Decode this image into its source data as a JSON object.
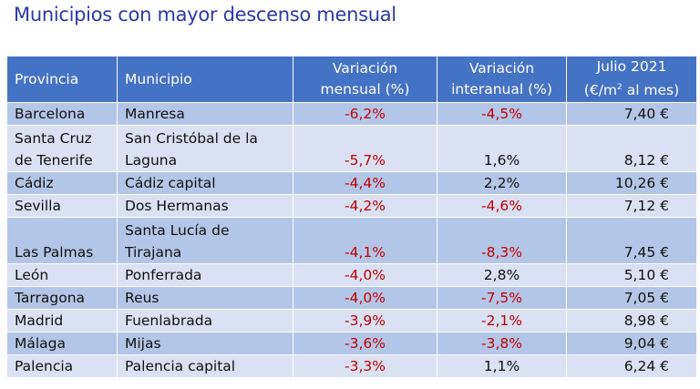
{
  "title": "Municipios con mayor descenso mensual",
  "header": {
    "provincia": "Provincia",
    "municipio": "Municipio",
    "variacion_mensual_1": "Variación",
    "variacion_mensual_2": "mensual (%)",
    "variacion_interanual_1": "Variación",
    "variacion_interanual_2": "interanual (%)",
    "julio_1": "Julio 2021",
    "julio_2a": "(€/m",
    "julio_sup": "2",
    "julio_2b": " al mes)"
  },
  "rows": [
    {
      "provincia": [
        "Barcelona"
      ],
      "municipio": [
        "Manresa"
      ],
      "mensual": "-6,2%",
      "interanual": "-4,5%",
      "precio": "7,40 €"
    },
    {
      "provincia": [
        "Santa Cruz",
        "de Tenerife"
      ],
      "municipio": [
        "San Cristóbal de la",
        "Laguna"
      ],
      "mensual": "-5,7%",
      "interanual": "1,6%",
      "precio": "8,12 €"
    },
    {
      "provincia": [
        "Cádiz"
      ],
      "municipio": [
        "Cádiz capital"
      ],
      "mensual": "-4,4%",
      "interanual": "2,2%",
      "precio": "10,26 €"
    },
    {
      "provincia": [
        "Sevilla"
      ],
      "municipio": [
        "Dos Hermanas"
      ],
      "mensual": "-4,2%",
      "interanual": "-4,6%",
      "precio": "7,12 €"
    },
    {
      "provincia": [
        "Las Palmas"
      ],
      "municipio": [
        "Santa Lucía de",
        "Tirajana"
      ],
      "mensual": "-4,1%",
      "interanual": "-8,3%",
      "precio": "7,45 €"
    },
    {
      "provincia": [
        "León"
      ],
      "municipio": [
        "Ponferrada"
      ],
      "mensual": "-4,0%",
      "interanual": "2,8%",
      "precio": "5,10 €"
    },
    {
      "provincia": [
        "Tarragona"
      ],
      "municipio": [
        "Reus"
      ],
      "mensual": "-4,0%",
      "interanual": "-7,5%",
      "precio": "7,05 €"
    },
    {
      "provincia": [
        "Madrid"
      ],
      "municipio": [
        "Fuenlabrada"
      ],
      "mensual": "-3,9%",
      "interanual": "-2,1%",
      "precio": "8,98 €"
    },
    {
      "provincia": [
        "Málaga"
      ],
      "municipio": [
        "Mijas"
      ],
      "mensual": "-3,6%",
      "interanual": "-3,8%",
      "precio": "9,04 €"
    },
    {
      "provincia": [
        "Palencia"
      ],
      "municipio": [
        "Palencia capital"
      ],
      "mensual": "-3,3%",
      "interanual": "1,1%",
      "precio": "6,24 €"
    }
  ],
  "colors": {
    "header_bg": "#4472c4",
    "row_odd": "#b4c6e7",
    "row_even": "#d9e1f2",
    "negative": "#c00000",
    "title": "#2a3aa8"
  }
}
